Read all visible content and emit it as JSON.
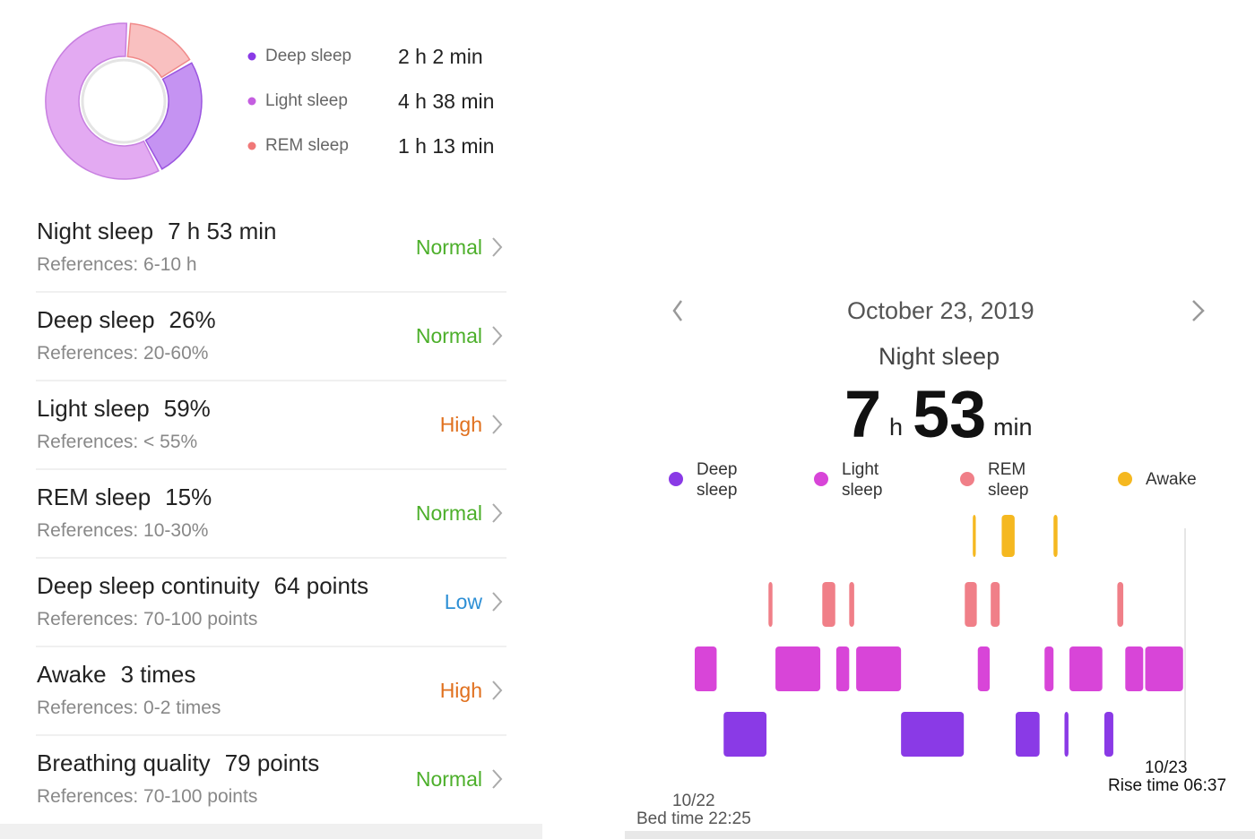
{
  "summary": {
    "items": [
      {
        "name": "Deep sleep",
        "duration": "2 h 2 min",
        "minutes": 122,
        "color": "#8a3ae6",
        "ring_color": "#c593f2",
        "ring_stroke": "#9a55e0"
      },
      {
        "name": "Light sleep",
        "duration": "4 h 38 min",
        "minutes": 278,
        "color": "#c45ee0",
        "ring_color": "#e3aaf2",
        "ring_stroke": "#c77fe0"
      },
      {
        "name": "REM sleep",
        "duration": "1 h 13 min",
        "minutes": 73,
        "color": "#f07878",
        "ring_color": "#f9c0c0",
        "ring_stroke": "#f08a8a"
      }
    ]
  },
  "metrics": [
    {
      "title": "Night sleep",
      "value": "7 h 53 min",
      "reference": "References: 6-10 h",
      "status": "Normal",
      "status_color": "#4caf2a"
    },
    {
      "title": "Deep sleep",
      "value": "26%",
      "reference": "References: 20-60%",
      "status": "Normal",
      "status_color": "#4caf2a"
    },
    {
      "title": "Light sleep",
      "value": "59%",
      "reference": "References: < 55%",
      "status": "High",
      "status_color": "#e0701e"
    },
    {
      "title": "REM sleep",
      "value": "15%",
      "reference": "References: 10-30%",
      "status": "Normal",
      "status_color": "#4caf2a"
    },
    {
      "title": "Deep sleep continuity",
      "value": "64 points",
      "reference": "References: 70-100 points",
      "status": "Low",
      "status_color": "#2d8fd5"
    },
    {
      "title": "Awake",
      "value": "3 times",
      "reference": "References: 0-2 times",
      "status": "High",
      "status_color": "#e0701e"
    },
    {
      "title": "Breathing quality",
      "value": "79 points",
      "reference": "References: 70-100 points",
      "status": "Normal",
      "status_color": "#4caf2a"
    }
  ],
  "detail": {
    "date": "October 23, 2019",
    "title": "Night sleep",
    "hours": "7",
    "hours_unit": "h",
    "minutes": "53",
    "minutes_unit": "min",
    "xlim": [
      0,
      492
    ],
    "legend": [
      {
        "name": "Deep sleep",
        "color": "#8a3ae6",
        "segments": [
          [
            29,
            72
          ],
          [
            207,
            270
          ],
          [
            322,
            346
          ],
          [
            371,
            375
          ],
          [
            411,
            420
          ]
        ]
      },
      {
        "name": "Light sleep",
        "color": "#d845d8",
        "segments": [
          [
            0,
            22
          ],
          [
            81,
            126
          ],
          [
            142,
            155
          ],
          [
            162,
            207
          ],
          [
            284,
            296
          ],
          [
            351,
            360
          ],
          [
            376,
            409
          ],
          [
            432,
            450
          ],
          [
            452,
            490
          ]
        ]
      },
      {
        "name": "REM sleep",
        "color": "#f07f88",
        "segments": [
          [
            74,
            78
          ],
          [
            128,
            141
          ],
          [
            155,
            160
          ],
          [
            271,
            283
          ],
          [
            297,
            306
          ],
          [
            424,
            430
          ]
        ]
      },
      {
        "name": "Awake",
        "color": "#f5b820",
        "segments": [
          [
            279,
            282
          ],
          [
            308,
            321
          ],
          [
            360,
            364
          ]
        ]
      }
    ],
    "start": {
      "date": "10/22",
      "label": "Bed time 22:25"
    },
    "end": {
      "date": "10/23",
      "label": "Rise time 06:37"
    }
  }
}
